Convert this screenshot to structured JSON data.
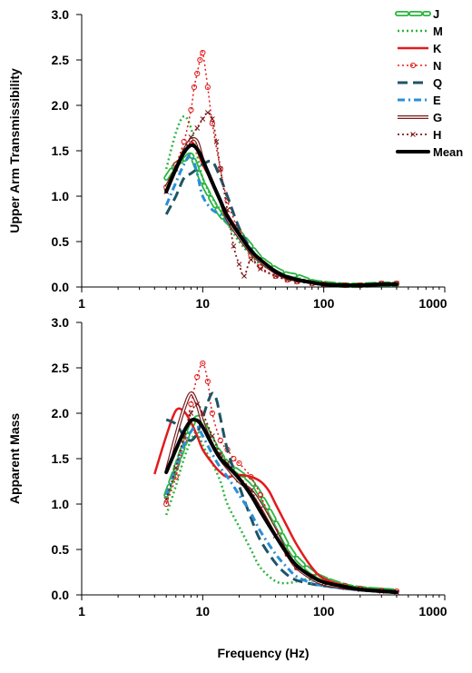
{
  "chart_data": [
    {
      "type": "line",
      "title": "",
      "xlabel": "",
      "ylabel": "Upper Arm Transmissibility",
      "x_scale": "log",
      "xlim": [
        1,
        1000
      ],
      "ylim": [
        0,
        3.0
      ],
      "grid": false,
      "legend": "top-right",
      "x_tick_labels": [
        "1",
        "10",
        "100",
        "1000"
      ],
      "y_tick_labels": [
        "0.0",
        "0.5",
        "1.0",
        "1.5",
        "2.0",
        "2.5",
        "3.0"
      ],
      "series": [
        {
          "name": "J",
          "color": "#2bb540",
          "x": [
            5,
            6,
            7,
            8,
            9,
            10,
            12,
            14,
            16,
            20,
            25,
            30,
            40,
            50,
            60,
            80,
            100,
            150,
            200,
            300,
            400
          ],
          "y": [
            1.2,
            1.35,
            1.4,
            1.45,
            1.3,
            1.15,
            0.95,
            0.8,
            0.72,
            0.6,
            0.45,
            0.32,
            0.2,
            0.14,
            0.12,
            0.06,
            0.04,
            0.02,
            0.02,
            0.03,
            0.03
          ]
        },
        {
          "name": "M",
          "color": "#2bb540",
          "x": [
            5,
            6,
            7,
            8,
            9,
            10,
            12,
            14,
            16,
            20,
            25,
            30,
            40,
            50,
            60,
            80,
            100,
            150,
            200,
            300,
            400
          ],
          "y": [
            1.3,
            1.7,
            1.88,
            1.75,
            1.45,
            1.2,
            0.98,
            0.85,
            0.7,
            0.5,
            0.35,
            0.25,
            0.17,
            0.12,
            0.1,
            0.06,
            0.04,
            0.02,
            0.02,
            0.03,
            0.03
          ]
        },
        {
          "name": "K",
          "color": "#e41a1c",
          "x": [
            5,
            6,
            7,
            8,
            9,
            10,
            12,
            14,
            16,
            20,
            25,
            30,
            40,
            50,
            60,
            80,
            100,
            150,
            200,
            300,
            400
          ],
          "y": [
            1.1,
            1.3,
            1.5,
            1.6,
            1.5,
            1.35,
            1.15,
            0.95,
            0.8,
            0.6,
            0.4,
            0.28,
            0.16,
            0.1,
            0.08,
            0.05,
            0.03,
            0.02,
            0.02,
            0.03,
            0.03
          ]
        },
        {
          "name": "N",
          "color": "#e41a1c",
          "x": [
            5,
            6,
            7,
            8,
            8.5,
            9,
            9.5,
            10,
            11,
            12,
            14,
            16,
            20,
            25,
            30,
            40,
            50,
            60,
            80,
            100,
            150,
            200,
            300,
            400
          ],
          "y": [
            1.1,
            1.35,
            1.6,
            1.95,
            2.2,
            2.35,
            2.5,
            2.58,
            2.2,
            1.8,
            1.3,
            0.95,
            0.6,
            0.35,
            0.22,
            0.12,
            0.08,
            0.06,
            0.04,
            0.03,
            0.02,
            0.02,
            0.04,
            0.04
          ]
        },
        {
          "name": "Q",
          "color": "#1f5466",
          "x": [
            5,
            6,
            7,
            8,
            9,
            10,
            12,
            14,
            16,
            20,
            25,
            30,
            40,
            50,
            60,
            80,
            100,
            150,
            200,
            300,
            400
          ],
          "y": [
            0.8,
            1.0,
            1.2,
            1.25,
            1.3,
            1.35,
            1.38,
            1.2,
            1.0,
            0.65,
            0.42,
            0.3,
            0.18,
            0.12,
            0.09,
            0.05,
            0.03,
            0.02,
            0.02,
            0.03,
            0.03
          ]
        },
        {
          "name": "E",
          "color": "#2a8fd8",
          "x": [
            5,
            6,
            7,
            8,
            9,
            10,
            12,
            14,
            16,
            20,
            25,
            30,
            40,
            50,
            60,
            80,
            100,
            150,
            200,
            300,
            400
          ],
          "y": [
            0.9,
            1.15,
            1.35,
            1.45,
            1.25,
            1.0,
            0.85,
            0.8,
            0.72,
            0.55,
            0.42,
            0.3,
            0.17,
            0.1,
            0.08,
            0.05,
            0.03,
            0.02,
            0.02,
            0.03,
            0.03
          ]
        },
        {
          "name": "G",
          "color": "#7b1c1c",
          "x": [
            5,
            6,
            7,
            8,
            9,
            10,
            12,
            14,
            16,
            20,
            25,
            30,
            40,
            50,
            60,
            80,
            100,
            150,
            200,
            300,
            400
          ],
          "y": [
            1.1,
            1.3,
            1.5,
            1.62,
            1.6,
            1.4,
            1.15,
            0.95,
            0.75,
            0.55,
            0.38,
            0.28,
            0.16,
            0.1,
            0.08,
            0.05,
            0.03,
            0.02,
            0.02,
            0.03,
            0.03
          ]
        },
        {
          "name": "H",
          "color": "#7b1c1c",
          "x": [
            5,
            6,
            7,
            8,
            9,
            10,
            11,
            12,
            13,
            14,
            16,
            18,
            20,
            22,
            25,
            30,
            40,
            50,
            60,
            80,
            100,
            150,
            200,
            300,
            400
          ],
          "y": [
            1.05,
            1.3,
            1.5,
            1.65,
            1.75,
            1.85,
            1.92,
            1.85,
            1.6,
            1.3,
            0.85,
            0.45,
            0.25,
            0.12,
            0.3,
            0.2,
            0.12,
            0.08,
            0.06,
            0.04,
            0.03,
            0.02,
            0.02,
            0.04,
            0.04
          ]
        },
        {
          "name": "Mean",
          "color": "#000000",
          "x": [
            5,
            6,
            7,
            8,
            9,
            10,
            12,
            14,
            16,
            20,
            25,
            30,
            40,
            50,
            60,
            80,
            100,
            150,
            200,
            300,
            400
          ],
          "y": [
            1.05,
            1.3,
            1.48,
            1.56,
            1.52,
            1.4,
            1.15,
            0.95,
            0.78,
            0.58,
            0.4,
            0.3,
            0.17,
            0.11,
            0.08,
            0.05,
            0.03,
            0.02,
            0.02,
            0.03,
            0.03
          ]
        }
      ]
    },
    {
      "type": "line",
      "title": "",
      "xlabel": "Frequency (Hz)",
      "ylabel": "Apparent Mass",
      "x_scale": "log",
      "xlim": [
        1,
        1000
      ],
      "ylim": [
        0,
        3.0
      ],
      "grid": false,
      "legend": "",
      "x_tick_labels": [
        "1",
        "10",
        "100",
        "1000"
      ],
      "y_tick_labels": [
        "0.0",
        "0.5",
        "1.0",
        "1.5",
        "2.0",
        "2.5",
        "3.0"
      ],
      "series": [
        {
          "name": "J",
          "x": [
            5,
            6,
            7,
            8,
            9,
            10,
            12,
            14,
            16,
            20,
            25,
            30,
            40,
            50,
            60,
            80,
            100,
            150,
            200,
            300,
            400
          ],
          "y": [
            1.1,
            1.4,
            1.65,
            1.85,
            1.95,
            1.9,
            1.7,
            1.55,
            1.45,
            1.35,
            1.25,
            1.1,
            0.8,
            0.55,
            0.4,
            0.25,
            0.18,
            0.1,
            0.07,
            0.05,
            0.04
          ]
        },
        {
          "name": "M",
          "x": [
            5,
            6,
            7,
            8,
            9,
            10,
            12,
            14,
            16,
            20,
            25,
            30,
            40,
            50,
            60,
            70,
            80,
            100,
            150,
            200,
            300,
            400
          ],
          "y": [
            0.88,
            1.2,
            1.5,
            1.7,
            1.8,
            1.65,
            1.45,
            1.25,
            1.0,
            0.75,
            0.5,
            0.3,
            0.15,
            0.13,
            0.15,
            0.17,
            0.16,
            0.13,
            0.1,
            0.08,
            0.06,
            0.05
          ]
        },
        {
          "name": "K",
          "x": [
            4,
            5,
            6,
            7,
            8,
            9,
            10,
            12,
            14,
            16,
            20,
            25,
            30,
            35,
            40,
            50,
            60,
            80,
            100,
            150,
            200,
            300,
            400
          ],
          "y": [
            1.33,
            1.75,
            2.03,
            2.02,
            1.9,
            1.75,
            1.6,
            1.45,
            1.35,
            1.3,
            1.32,
            1.3,
            1.25,
            1.15,
            1.0,
            0.75,
            0.55,
            0.3,
            0.18,
            0.1,
            0.07,
            0.05,
            0.04
          ]
        },
        {
          "name": "N",
          "x": [
            5,
            6,
            7,
            8,
            9,
            10,
            11,
            12,
            14,
            16,
            18,
            20,
            25,
            30,
            40,
            50,
            60,
            80,
            100,
            150,
            200,
            300,
            400
          ],
          "y": [
            1.0,
            1.3,
            1.7,
            2.1,
            2.4,
            2.55,
            2.35,
            2.0,
            1.7,
            1.6,
            1.5,
            1.45,
            1.3,
            1.1,
            0.7,
            0.45,
            0.3,
            0.2,
            0.15,
            0.1,
            0.07,
            0.05,
            0.04
          ]
        },
        {
          "name": "Q",
          "x": [
            5,
            6,
            7,
            8,
            9,
            10,
            11,
            12,
            13,
            14,
            16,
            20,
            25,
            30,
            40,
            50,
            60,
            80,
            100,
            150,
            200,
            300,
            400
          ],
          "y": [
            1.93,
            1.88,
            1.75,
            1.7,
            1.78,
            1.95,
            2.12,
            2.22,
            2.15,
            1.95,
            1.6,
            1.2,
            0.85,
            0.6,
            0.35,
            0.22,
            0.16,
            0.12,
            0.1,
            0.07,
            0.06,
            0.05,
            0.04
          ]
        },
        {
          "name": "E",
          "x": [
            5,
            6,
            7,
            8,
            9,
            10,
            12,
            14,
            16,
            20,
            25,
            30,
            40,
            50,
            60,
            80,
            100,
            150,
            200,
            300,
            400
          ],
          "y": [
            1.1,
            1.4,
            1.65,
            1.8,
            1.85,
            1.75,
            1.55,
            1.4,
            1.3,
            1.1,
            0.9,
            0.7,
            0.45,
            0.3,
            0.2,
            0.13,
            0.1,
            0.07,
            0.05,
            0.04,
            0.04
          ]
        },
        {
          "name": "G",
          "x": [
            5,
            6,
            7,
            8,
            9,
            10,
            12,
            14,
            16,
            20,
            25,
            30,
            40,
            50,
            60,
            80,
            100,
            150,
            200,
            300,
            400
          ],
          "y": [
            1.35,
            1.75,
            2.05,
            2.22,
            2.1,
            1.9,
            1.65,
            1.5,
            1.4,
            1.25,
            1.15,
            1.0,
            0.7,
            0.45,
            0.3,
            0.18,
            0.12,
            0.08,
            0.06,
            0.04,
            0.03
          ]
        },
        {
          "name": "H",
          "x": [
            5,
            6,
            7,
            8,
            9,
            10,
            12,
            14,
            16,
            20,
            25,
            30,
            40,
            50,
            60,
            80,
            100,
            150,
            200,
            300,
            400
          ],
          "y": [
            1.05,
            1.4,
            1.75,
            2.0,
            2.1,
            2.0,
            1.75,
            1.55,
            1.45,
            1.3,
            1.15,
            0.95,
            0.65,
            0.45,
            0.3,
            0.2,
            0.13,
            0.08,
            0.06,
            0.04,
            0.03
          ]
        },
        {
          "name": "Mean",
          "x": [
            5,
            6,
            7,
            8,
            9,
            10,
            12,
            14,
            16,
            20,
            25,
            30,
            40,
            50,
            60,
            80,
            100,
            150,
            200,
            300,
            400
          ],
          "y": [
            1.35,
            1.6,
            1.8,
            1.92,
            1.92,
            1.85,
            1.65,
            1.5,
            1.42,
            1.28,
            1.1,
            0.92,
            0.65,
            0.45,
            0.32,
            0.2,
            0.14,
            0.09,
            0.06,
            0.04,
            0.03
          ]
        }
      ]
    }
  ]
}
